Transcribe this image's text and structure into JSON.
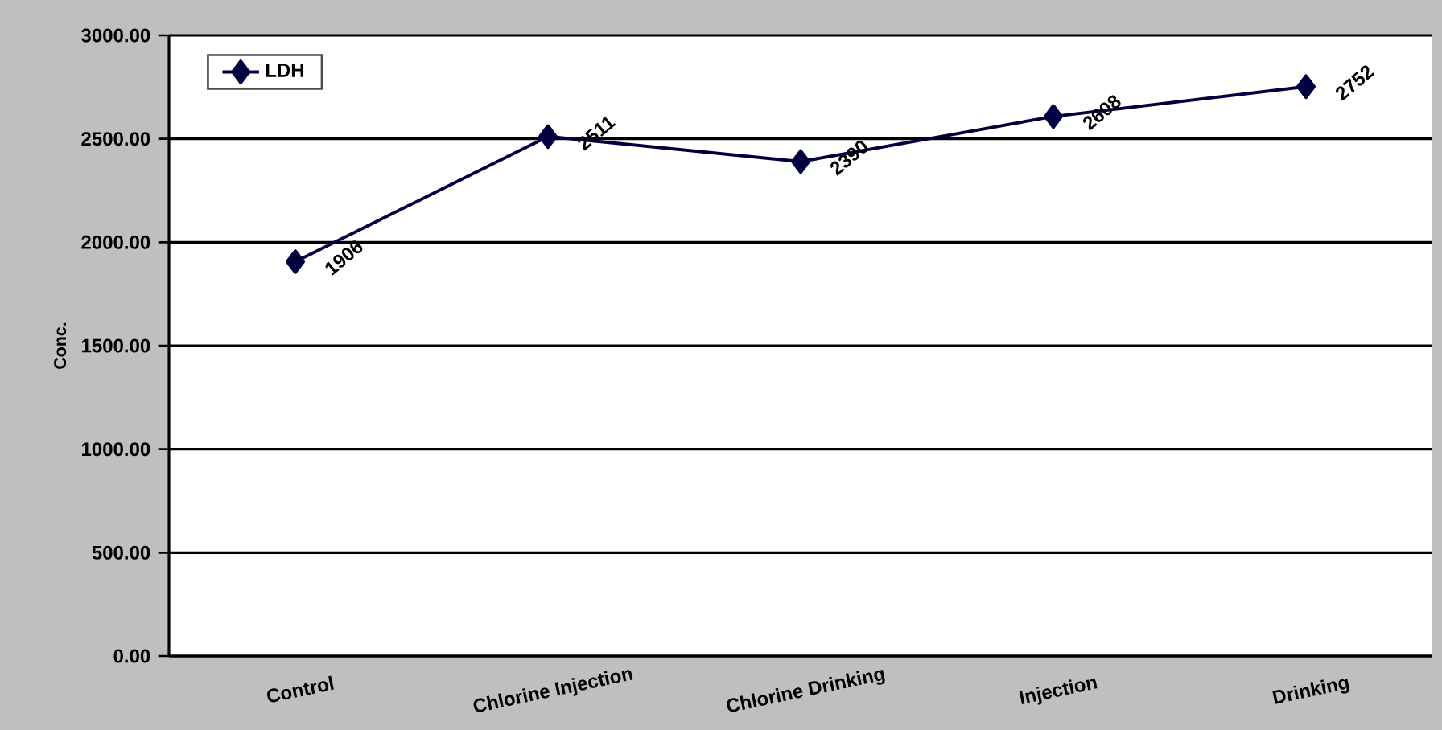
{
  "chart_data": {
    "type": "line",
    "ylabel": "Conc.",
    "categories": [
      "Control",
      "Chlorine Injection",
      "Chlorine Drinking",
      "Injection",
      "Drinking"
    ],
    "series": [
      {
        "name": "LDH",
        "color": "#000040",
        "values": [
          1906,
          2511,
          2390,
          2608,
          2752
        ],
        "value_labels": [
          "1906",
          "2511",
          "2390",
          "2608",
          "2752"
        ]
      }
    ],
    "ylim": [
      0,
      3000
    ],
    "yticks": [
      {
        "value": 0,
        "label": "0.00"
      },
      {
        "value": 500,
        "label": "500.00"
      },
      {
        "value": 1000,
        "label": "1000.00"
      },
      {
        "value": 1500,
        "label": "1500.00"
      },
      {
        "value": 2000,
        "label": "2000.00"
      },
      {
        "value": 2500,
        "label": "2500.00"
      },
      {
        "value": 3000,
        "label": "3000.00"
      }
    ],
    "grid": "y",
    "legend": "top left",
    "marker": "diamond",
    "line_style": "solid"
  }
}
